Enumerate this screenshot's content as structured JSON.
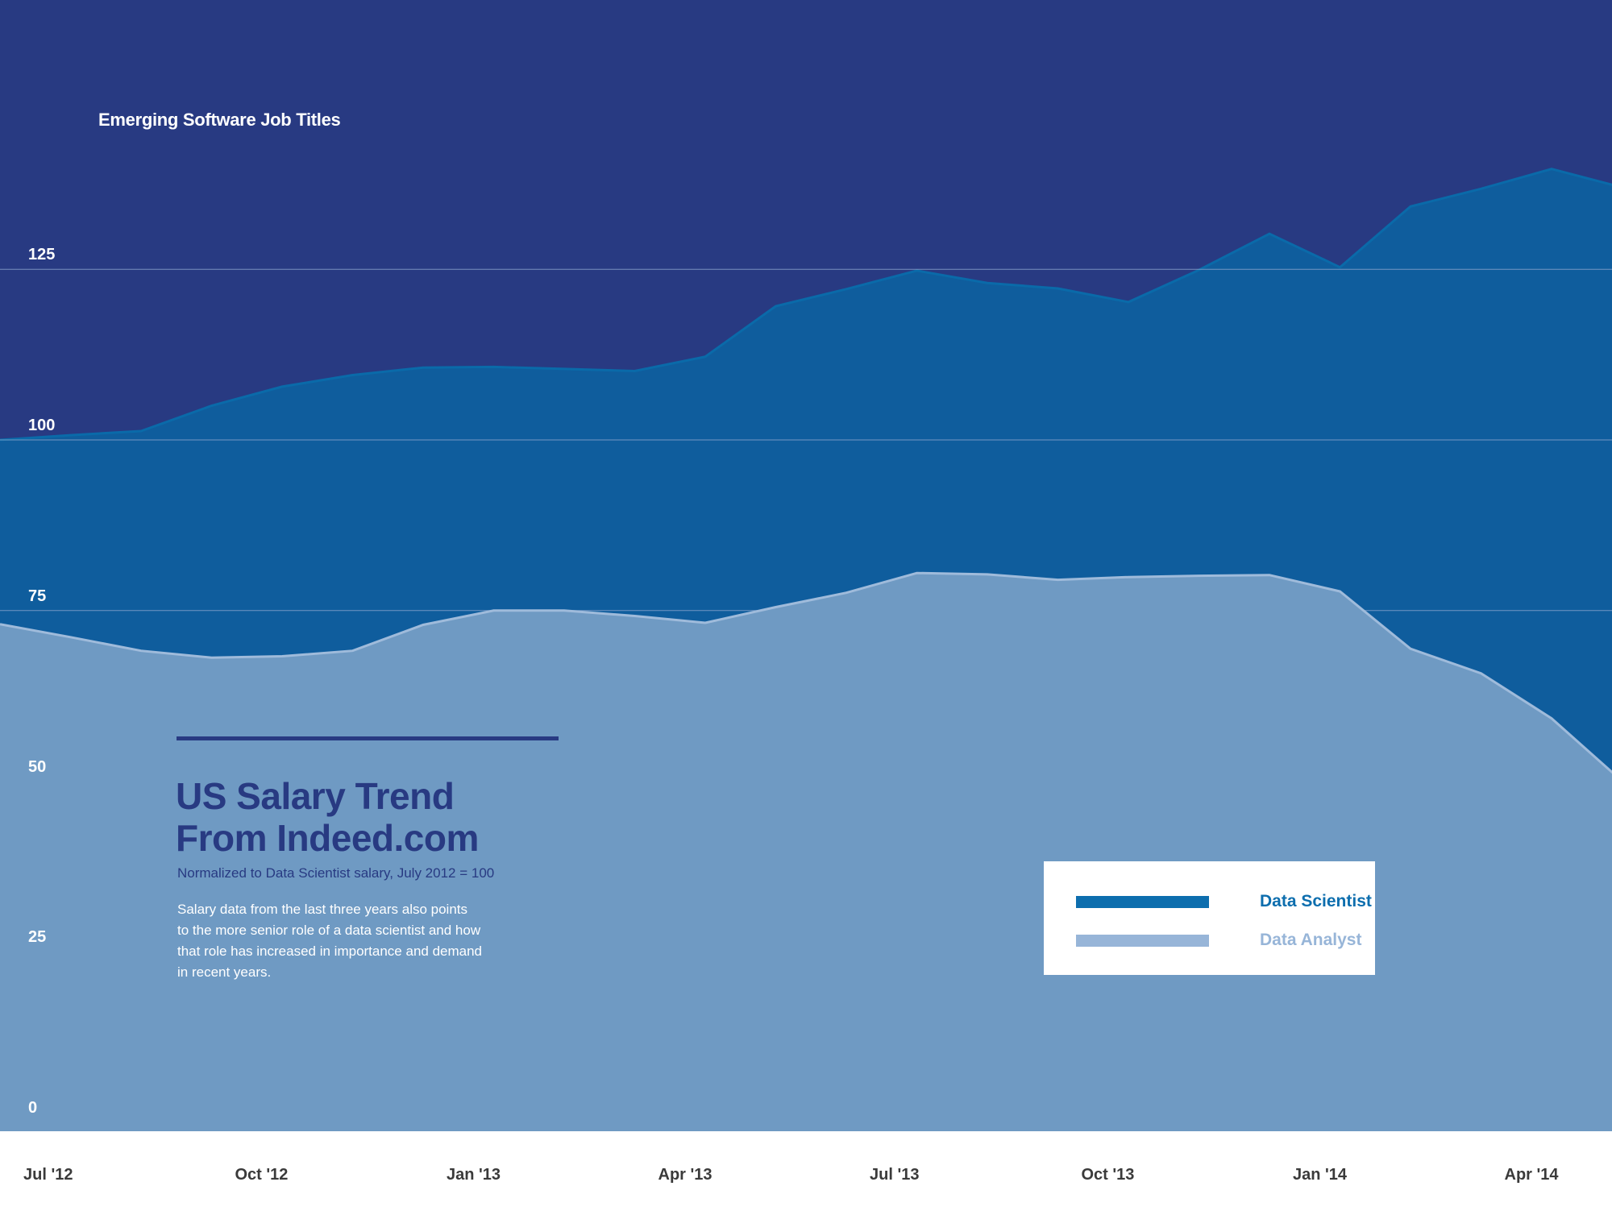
{
  "colors": {
    "background": "#283a82",
    "data_scientist_fill": "#0f5d9d",
    "data_scientist_line": "#0a6aa9",
    "data_analyst_fill": "#6f9ac3",
    "data_analyst_line": "#9fbbdb",
    "axis_band": "#ffffff",
    "gridline": "#8ea6cd",
    "legend_ds_text": "#0d6eae",
    "legend_da_text": "#97b5d8"
  },
  "chart_data": {
    "type": "area",
    "title": "Emerging Software Job Titles",
    "x": [
      "Jul '12",
      "Aug '12",
      "Sep '12",
      "Oct '12",
      "Nov '12",
      "Dec '12",
      "Jan '13",
      "Feb '13",
      "Mar '13",
      "Apr '13",
      "May '13",
      "Jun '13",
      "Jul '13",
      "Aug '13",
      "Sep '13",
      "Oct '13",
      "Nov '13",
      "Dec '13",
      "Jan '14",
      "Feb '14",
      "Mar '14",
      "Apr '14",
      "May '14",
      "Jun '14"
    ],
    "series": [
      {
        "name": "Data Scientist",
        "values": [
          100,
          100.7,
          101.3,
          105,
          107.8,
          109.5,
          110.6,
          110.7,
          110.4,
          110.1,
          112.2,
          119.6,
          122.1,
          124.8,
          123,
          122.2,
          120.2,
          124.9,
          130.2,
          125.3,
          134.2,
          136.8,
          139.7,
          137
        ]
      },
      {
        "name": "Data Analyst",
        "values": [
          73,
          71.1,
          69.1,
          68.1,
          68.3,
          69.1,
          72.9,
          75,
          75,
          74.2,
          73.2,
          75.5,
          77.6,
          80.5,
          80.3,
          79.5,
          79.9,
          80.1,
          80.2,
          77.8,
          69.4,
          65.8,
          59.2,
          50
        ]
      }
    ],
    "xticks": [
      "Jul '12",
      "Oct '12",
      "Jan '13",
      "Apr '13",
      "Jul '13",
      "Oct '13",
      "Jan '14",
      "Apr '14"
    ],
    "yticks": [
      0,
      25,
      50,
      75,
      100,
      125
    ],
    "ylim": [
      0,
      150
    ],
    "grid": true,
    "legend_position": "bottom-right"
  },
  "annotation": {
    "headline_line1": "US Salary Trend",
    "headline_line2": "From Indeed.com",
    "subtitle": "Normalized to Data Scientist salary, July 2012 = 100",
    "desc_line1": "Salary data from the last three years also points",
    "desc_line2": "to the more senior role of a data scientist and how",
    "desc_line3": "that role has increased in importance and demand",
    "desc_line4": "in recent years."
  },
  "legend": {
    "item1": "Data Scientist",
    "item2": "Data Analyst"
  }
}
